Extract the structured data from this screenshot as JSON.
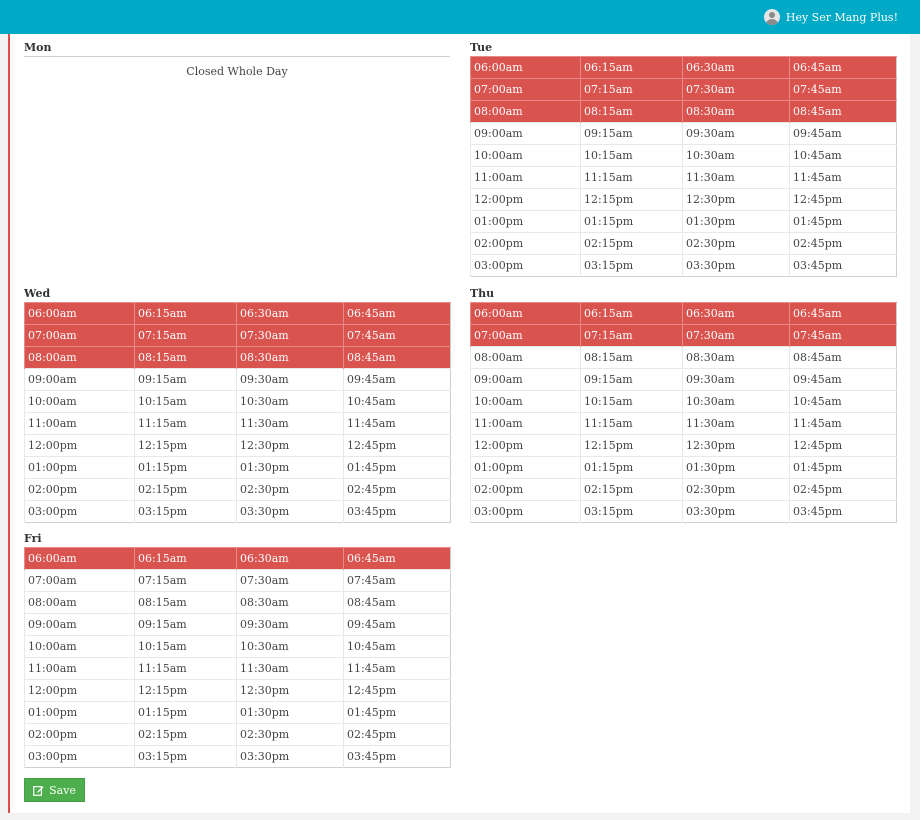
{
  "header": {
    "greeting": "Hey Ser Mang Plus!"
  },
  "days": {
    "mon": {
      "label": "Mon",
      "closed_text": "Closed Whole Day"
    },
    "tue": {
      "label": "Tue"
    },
    "wed": {
      "label": "Wed"
    },
    "thu": {
      "label": "Thu"
    },
    "fri": {
      "label": "Fri"
    }
  },
  "slots": [
    [
      "06:00am",
      "06:15am",
      "06:30am",
      "06:45am"
    ],
    [
      "07:00am",
      "07:15am",
      "07:30am",
      "07:45am"
    ],
    [
      "08:00am",
      "08:15am",
      "08:30am",
      "08:45am"
    ],
    [
      "09:00am",
      "09:15am",
      "09:30am",
      "09:45am"
    ],
    [
      "10:00am",
      "10:15am",
      "10:30am",
      "10:45am"
    ],
    [
      "11:00am",
      "11:15am",
      "11:30am",
      "11:45am"
    ],
    [
      "12:00pm",
      "12:15pm",
      "12:30pm",
      "12:45pm"
    ],
    [
      "01:00pm",
      "01:15pm",
      "01:30pm",
      "01:45pm"
    ],
    [
      "02:00pm",
      "02:15pm",
      "02:30pm",
      "02:45pm"
    ],
    [
      "03:00pm",
      "03:15pm",
      "03:30pm",
      "03:45pm"
    ]
  ],
  "selected_rows": {
    "tue": 3,
    "wed": 3,
    "thu": 2,
    "fri": 1
  },
  "colors": {
    "topbar": "#00a9c5",
    "selected": "#d9534f",
    "save": "#4cae4c",
    "accent_border": "#e04b4b"
  },
  "actions": {
    "save_label": "Save"
  }
}
